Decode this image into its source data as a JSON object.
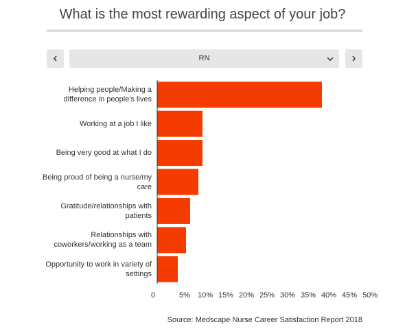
{
  "controls": {
    "selected": "RN"
  },
  "chart_data": {
    "type": "bar",
    "orientation": "horizontal",
    "title": "What is the most rewarding aspect of your job?",
    "categories": [
      "Helping people/Making a difference in people's lives",
      "Working at a job I like",
      "Being very good at what I do",
      "Being proud of being a nurse/my care",
      "Gratitude/relationships with patients",
      "Relationships with coworkers/working as a team",
      "Opportunity to work in variety of settings"
    ],
    "values": [
      40,
      11,
      11,
      10,
      8,
      7,
      5
    ],
    "color": "#f43c00",
    "xlim": [
      0,
      50
    ],
    "xticks": [
      0,
      {
        "value": 5,
        "label": "5%"
      },
      {
        "value": 10,
        "label": "10%"
      },
      {
        "value": 15,
        "label": "15%"
      },
      {
        "value": 20,
        "label": "20%"
      },
      {
        "value": 25,
        "label": "25%"
      },
      {
        "value": 30,
        "label": "30%"
      },
      {
        "value": 35,
        "label": "35%"
      },
      {
        "value": 40,
        "label": "40%"
      },
      {
        "value": 45,
        "label": "45%"
      },
      {
        "value": 50,
        "label": "50%"
      }
    ],
    "source": "Source: Medscape Nurse Career Satisfaction Report 2018"
  }
}
